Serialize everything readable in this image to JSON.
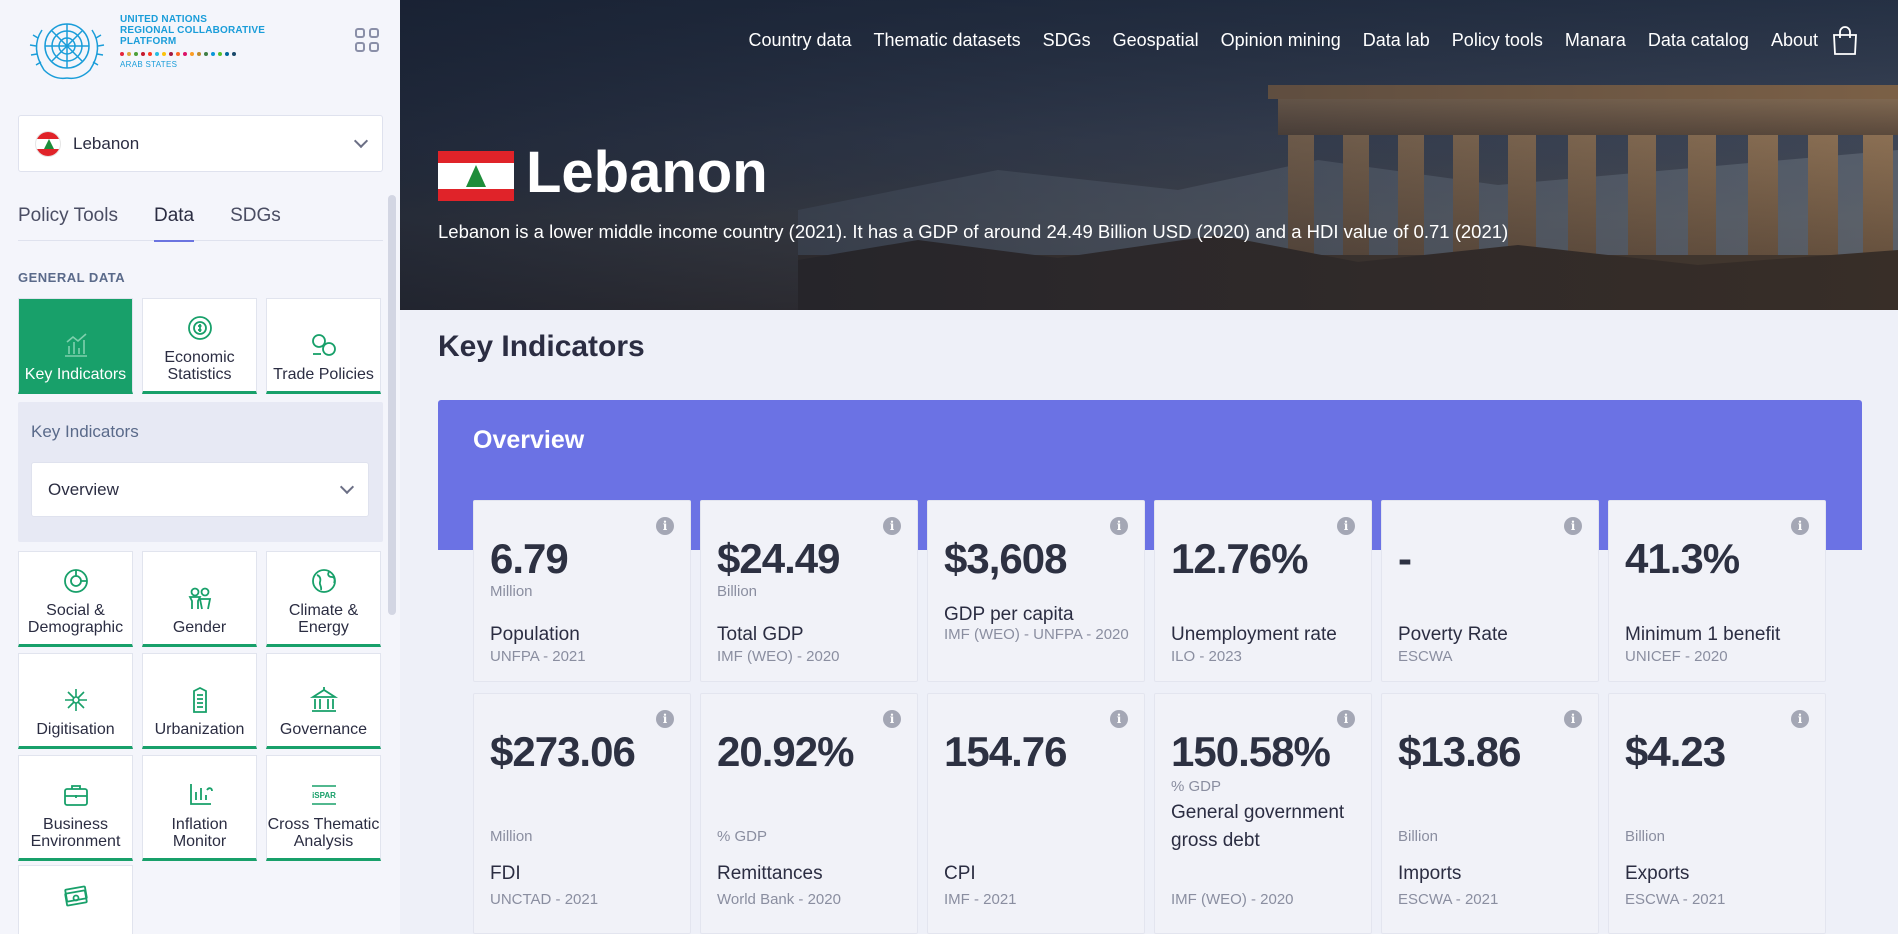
{
  "logo": {
    "line1": "UNITED NATIONS",
    "line2": "REGIONAL COLLABORATIVE",
    "line3": "PLATFORM",
    "line4": "ARAB STATES",
    "sdg_colors": [
      "#e5243b",
      "#dda63a",
      "#4c9f38",
      "#c5192d",
      "#ff3a21",
      "#26bde2",
      "#fcc30b",
      "#a21942",
      "#fd6925",
      "#dd1367",
      "#fd9d24",
      "#bf8b2e",
      "#3f7e44",
      "#0a97d9",
      "#56c02b",
      "#00689d",
      "#19486a"
    ]
  },
  "sidebar": {
    "country": "Lebanon",
    "tabs": [
      "Policy Tools",
      "Data",
      "SDGs"
    ],
    "active_tab": "Data",
    "section_label": "GENERAL DATA",
    "top_tiles": [
      {
        "label": "Key Indicators",
        "icon": "bar-chart-icon",
        "active": true
      },
      {
        "label": "Economic Statistics",
        "icon": "money-cycle-icon",
        "active": false
      },
      {
        "label": "Trade Policies",
        "icon": "coins-icon",
        "active": false
      }
    ],
    "key_indicators_panel": {
      "title": "Key Indicators",
      "selected": "Overview"
    },
    "tiles": [
      {
        "label": "Social & Demographic",
        "icon": "pie-chart-icon"
      },
      {
        "label": "Gender",
        "icon": "gender-icon"
      },
      {
        "label": "Climate & Energy",
        "icon": "globe-icon"
      },
      {
        "label": "Digitisation",
        "icon": "network-icon"
      },
      {
        "label": "Urbanization",
        "icon": "building-icon"
      },
      {
        "label": "Governance",
        "icon": "government-building-icon"
      },
      {
        "label": "Business Environment",
        "icon": "briefcase-icon"
      },
      {
        "label": "Inflation Monitor",
        "icon": "inflation-icon"
      },
      {
        "label": "Cross Thematic Analysis",
        "icon": "ispar-icon"
      },
      {
        "label": "",
        "icon": "cash-icon"
      }
    ],
    "ispar_text": "iSPAR"
  },
  "nav": {
    "links": [
      "Country data",
      "Thematic datasets",
      "SDGs",
      "Geospatial",
      "Opinion mining",
      "Data lab",
      "Policy tools",
      "Manara",
      "Data catalog",
      "About"
    ]
  },
  "hero": {
    "title": "Lebanon",
    "description": "Lebanon is a lower middle income country (2021). It has a GDP of around 24.49 Billion USD (2020) and a HDI value of 0.71 (2021)"
  },
  "main": {
    "page_title": "Key Indicators",
    "overview_title": "Overview",
    "info_glyph": "i",
    "cards_row1": [
      {
        "value": "6.79",
        "unit": "Million",
        "name": "Population",
        "source": "UNFPA - 2021"
      },
      {
        "value": "$24.49",
        "unit": "Billion",
        "name": "Total GDP",
        "source": "IMF (WEO) - 2020"
      },
      {
        "value": "$3,608",
        "unit": "",
        "name": "GDP per capita",
        "source": "IMF (WEO) - UNFPA - 2020"
      },
      {
        "value": "12.76%",
        "unit": "",
        "name": "Unemployment rate",
        "source": "ILO - 2023"
      },
      {
        "value": "-",
        "unit": "",
        "name": "Poverty Rate",
        "source": "ESCWA"
      },
      {
        "value": "41.3%",
        "unit": "",
        "name": "Minimum 1 benefit",
        "source": "UNICEF - 2020"
      }
    ],
    "cards_row2": [
      {
        "value": "$273.06",
        "unit": "Million",
        "name": "FDI",
        "source": "UNCTAD - 2021"
      },
      {
        "value": "20.92%",
        "unit": "% GDP",
        "name": "Remittances",
        "source": "World Bank - 2020"
      },
      {
        "value": "154.76",
        "unit": "",
        "name": "CPI",
        "source": "IMF - 2021"
      },
      {
        "value": "150.58%",
        "unit": "% GDP",
        "name": "General government gross debt",
        "source": "IMF (WEO) - 2020"
      },
      {
        "value": "$13.86",
        "unit": "Billion",
        "name": "Imports",
        "source": "ESCWA - 2021"
      },
      {
        "value": "$4.23",
        "unit": "Billion",
        "name": "Exports",
        "source": "ESCWA - 2021"
      }
    ]
  }
}
